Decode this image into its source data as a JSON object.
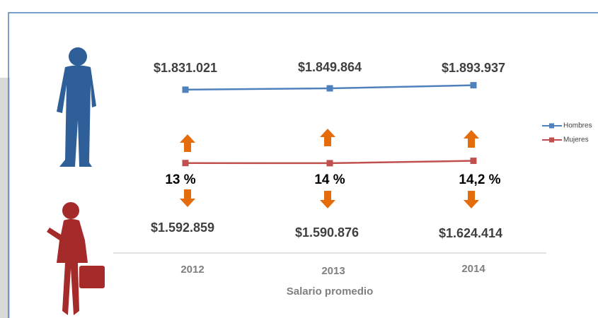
{
  "chart_data": {
    "type": "line",
    "x_label": "Salario promedio",
    "categories": [
      "2012",
      "2013",
      "2014"
    ],
    "series": [
      {
        "name": "Hombres",
        "color": "#4f81bd",
        "axis": "y",
        "values": [
          1831021,
          1849864,
          1893937
        ],
        "value_labels": [
          "$1.831.021",
          "$1.849.864",
          "$1.893.937"
        ]
      },
      {
        "name": "Mujeres",
        "color": "#c0504d",
        "axis": "y2",
        "values": [
          1592859,
          1590876,
          1624414
        ],
        "value_labels": [
          "$1.592.859",
          "$1.590.876",
          "$1.624.414"
        ]
      }
    ],
    "annotations": [
      "13 %",
      "14 %",
      "14,2 %"
    ],
    "ylim": [
      -500000,
      2500000
    ],
    "y2lim": [
      300000,
      3300000
    ],
    "legend": "right",
    "arrow_color": "#e46c0a"
  }
}
